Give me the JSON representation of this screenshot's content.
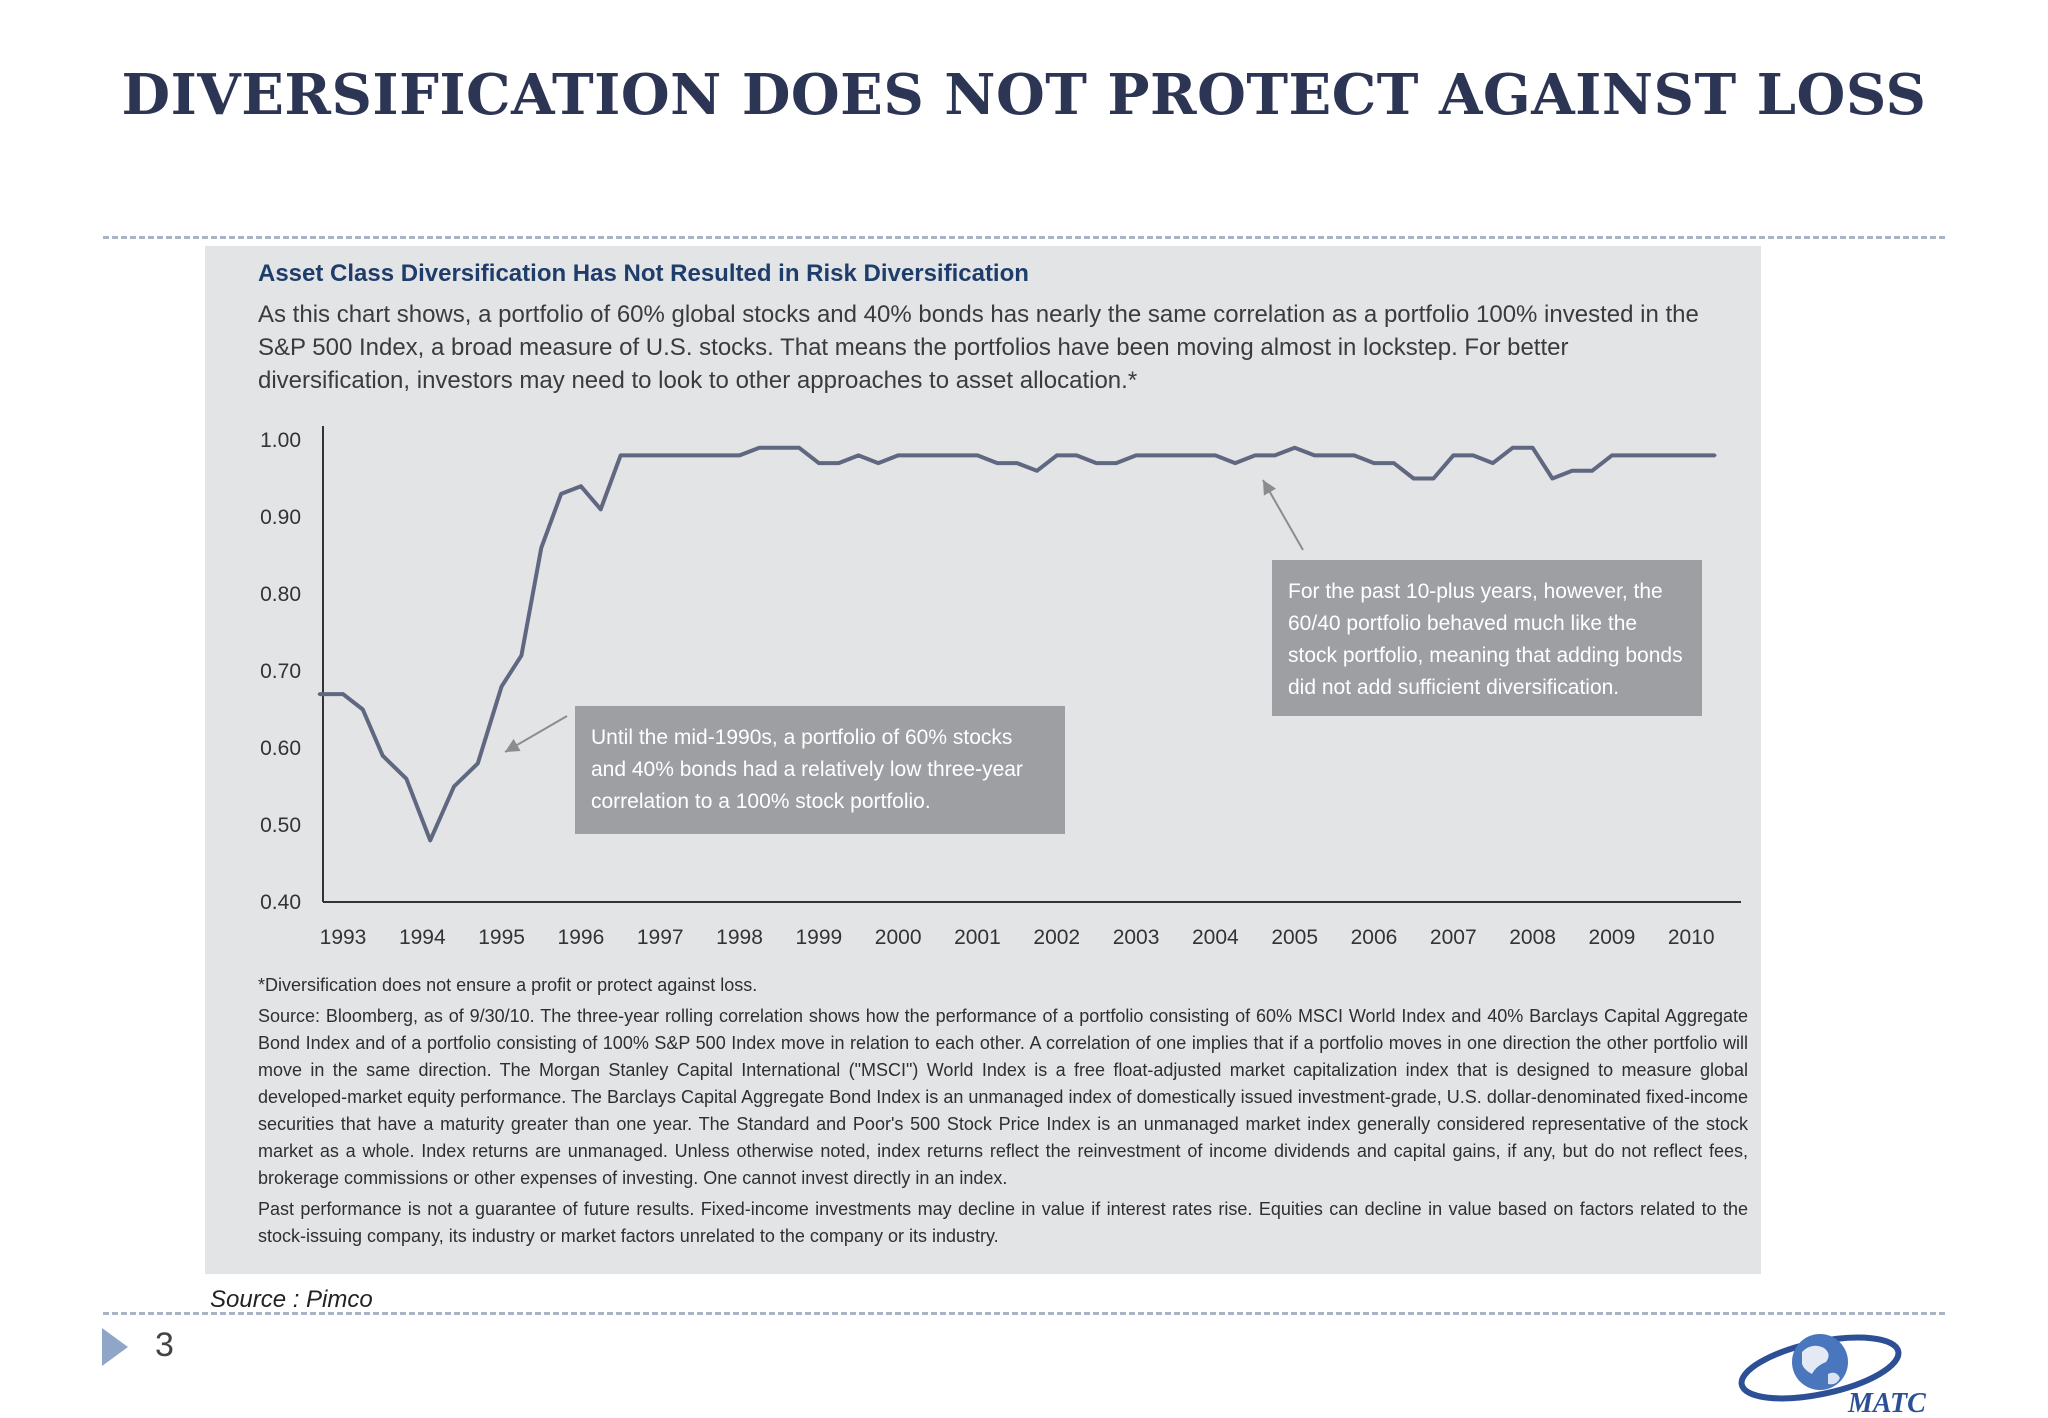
{
  "slide": {
    "title": "DIVERSIFICATION DOES NOT PROTECT AGAINST LOSS",
    "source": "Source : Pimco",
    "page_number": "3",
    "logo_text": "MATC"
  },
  "panel": {
    "heading": "Asset Class Diversification Has Not Resulted in Risk Diversification",
    "intro": "As this chart shows, a portfolio of 60% global stocks and 40% bonds has nearly the same correlation as a portfolio 100% invested in the S&P 500 Index, a broad measure of U.S. stocks. That means the portfolios have been moving almost in lockstep. For better diversification, investors may need to look to other approaches to asset allocation.*",
    "callout_early": "Until the mid-1990s, a portfolio of 60% stocks and 40% bonds had a relatively low three-year correlation to a 100% stock portfolio.",
    "callout_late": "For the past 10-plus years, however, the 60/40 portfolio behaved much like the stock portfolio, meaning that adding bonds did not add sufficient diversification.",
    "footnote": "*Diversification does not ensure a profit or protect against loss.",
    "source_note": "Source: Bloomberg, as of 9/30/10. The three-year rolling correlation shows how the performance of a portfolio consisting of 60% MSCI World Index and 40% Barclays Capital Aggregate Bond Index and of a portfolio consisting of 100% S&P 500 Index move in relation to each other. A correlation of one implies that if a portfolio moves in one direction the other portfolio will move in the same direction. The Morgan Stanley Capital International (\"MSCI\") World Index is a free float-adjusted market capitalization index that is designed to measure global developed-market equity performance. The Barclays Capital Aggregate Bond Index is an unmanaged index of domestically issued investment-grade, U.S. dollar-denominated fixed-income securities that have a maturity greater than one year. The Standard and Poor's 500 Stock Price Index is an unmanaged market index generally considered representative of the stock market as a whole. Index returns are unmanaged. Unless otherwise noted, index returns reflect the reinvestment of income dividends and capital gains, if any, but do not reflect fees, brokerage commissions or other expenses of investing. One cannot invest directly in an index.",
    "disclaimer": "Past performance is not a guarantee of future results. Fixed-income investments may decline in value if interest rates rise. Equities can decline in value based on factors related to the stock-issuing company, its industry or market factors unrelated to the company or its industry."
  },
  "colors": {
    "title": "#2d3554",
    "panel_background": "#e3e4e6",
    "heading": "#1f3d6b",
    "line": "#5f6880",
    "callout_background": "#9d9fa2",
    "page_marker": "#8fa6c9",
    "logo": "#2c4f95"
  },
  "icons": {
    "page_marker": "triangle-right-icon",
    "logo": "matc-globe-logo"
  },
  "chart_data": {
    "type": "line",
    "title": "",
    "xlabel": "",
    "ylabel": "",
    "x_ticks": [
      "1993",
      "1994",
      "1995",
      "1996",
      "1997",
      "1998",
      "1999",
      "2000",
      "2001",
      "2002",
      "2003",
      "2004",
      "2005",
      "2006",
      "2007",
      "2008",
      "2009",
      "2010"
    ],
    "y_ticks": [
      "1.00",
      "0.90",
      "0.80",
      "0.70",
      "0.60",
      "0.50",
      "0.40"
    ],
    "xlim": [
      1993,
      2010.3
    ],
    "ylim": [
      0.4,
      1.0
    ],
    "grid": false,
    "legend": false,
    "series": [
      {
        "x": [
          1992.7,
          1993.0,
          1993.25,
          1993.5,
          1993.8,
          1994.1,
          1994.4,
          1994.7,
          1995.0,
          1995.25,
          1995.5,
          1995.75,
          1996.0,
          1996.25,
          1996.5,
          1996.75,
          1997.0,
          1997.5,
          1998.0,
          1998.25,
          1998.5,
          1998.75,
          1999.0,
          1999.25,
          1999.5,
          1999.75,
          2000.0,
          2000.5,
          2001.0,
          2001.25,
          2001.5,
          2001.75,
          2002.0,
          2002.25,
          2002.5,
          2002.75,
          2003.0,
          2003.5,
          2004.0,
          2004.25,
          2004.5,
          2004.75,
          2005.0,
          2005.25,
          2005.5,
          2005.75,
          2006.0,
          2006.25,
          2006.5,
          2006.75,
          2007.0,
          2007.25,
          2007.5,
          2007.75,
          2008.0,
          2008.25,
          2008.5,
          2008.75,
          2009.0,
          2009.25,
          2009.5,
          2010.0,
          2010.3
        ],
        "y": [
          0.67,
          0.67,
          0.65,
          0.59,
          0.56,
          0.48,
          0.55,
          0.58,
          0.68,
          0.72,
          0.86,
          0.93,
          0.94,
          0.91,
          0.98,
          0.98,
          0.98,
          0.98,
          0.98,
          0.99,
          0.99,
          0.99,
          0.97,
          0.97,
          0.98,
          0.97,
          0.98,
          0.98,
          0.98,
          0.97,
          0.97,
          0.96,
          0.98,
          0.98,
          0.97,
          0.97,
          0.98,
          0.98,
          0.98,
          0.97,
          0.98,
          0.98,
          0.99,
          0.98,
          0.98,
          0.98,
          0.97,
          0.97,
          0.95,
          0.95,
          0.98,
          0.98,
          0.97,
          0.99,
          0.99,
          0.95,
          0.96,
          0.96,
          0.98,
          0.98,
          0.98,
          0.98,
          0.98
        ]
      }
    ]
  }
}
